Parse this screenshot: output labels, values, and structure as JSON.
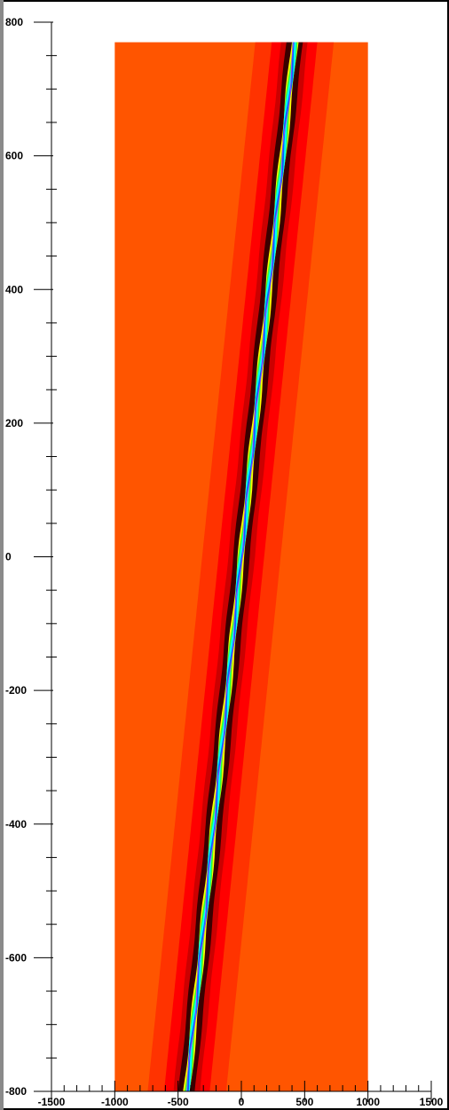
{
  "chart_data": {
    "type": "heatmap",
    "title": "",
    "xlabel": "",
    "ylabel": "",
    "xlim": [
      -1500,
      1500
    ],
    "ylim": [
      -800,
      800
    ],
    "x_ticks": [
      -1500,
      -1000,
      -500,
      0,
      500,
      1000,
      1500
    ],
    "x_tick_labels": [
      "-1500",
      "-1000",
      "-500",
      "0",
      "500",
      "1000",
      "1500"
    ],
    "y_ticks": [
      -800,
      -600,
      -400,
      -200,
      0,
      200,
      400,
      600,
      800
    ],
    "y_tick_labels": [
      "-800",
      "-600",
      "-400",
      "-200",
      "0",
      "200",
      "400",
      "600",
      "800"
    ],
    "x_minor_step": 100,
    "y_minor_step": 50,
    "field_extent": {
      "x": [
        -1000,
        1000
      ],
      "y": [
        -800,
        770
      ]
    },
    "ridge": {
      "description_points": [
        {
          "x": -430,
          "y": -800
        },
        {
          "x": 0,
          "y": 0
        },
        {
          "x": 420,
          "y": 770
        }
      ]
    },
    "colors": {
      "background": "#ff5500",
      "band_outer": "#ff3300",
      "band_mid": "#ff0000",
      "band_inner": "#cc0000",
      "dark": "#3a0000",
      "edge": "#ffff00",
      "green": "#33ff33",
      "cyan": "#00ffff",
      "blue": "#0066ff",
      "core": "#cc33ff"
    }
  }
}
